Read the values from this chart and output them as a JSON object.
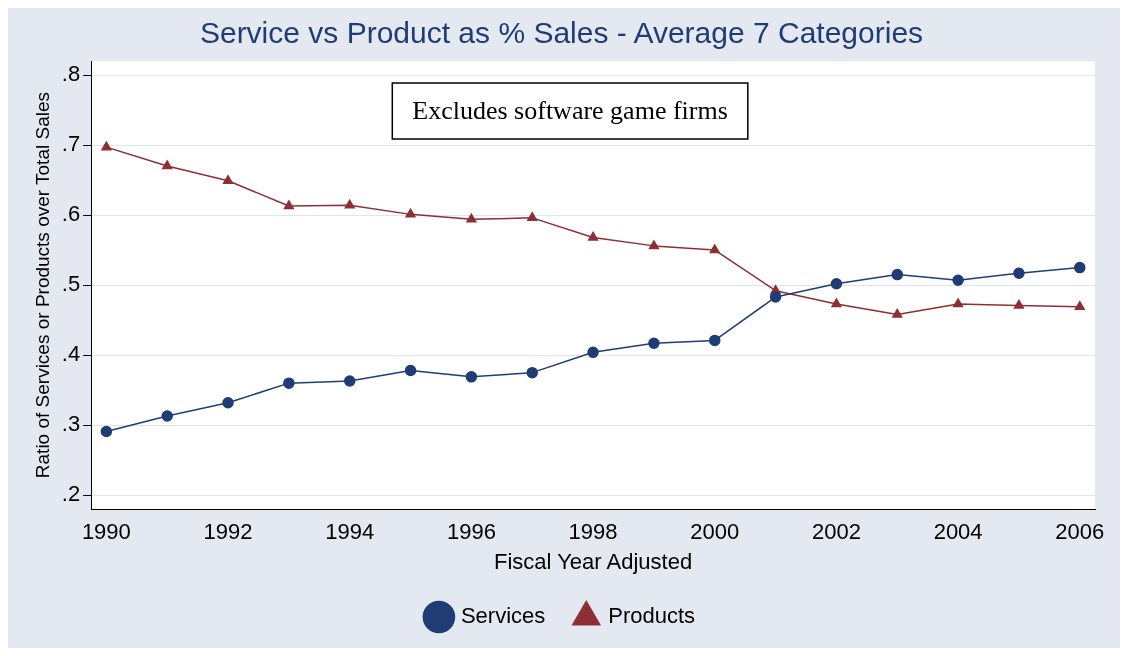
{
  "chart_data": {
    "type": "line",
    "title": "Service vs Product as % Sales - Average 7 Categories",
    "xlabel": "Fiscal Year Adjusted",
    "ylabel": "Ratio of Services or Products over Total Sales",
    "annotations": [
      "Excludes software game firms"
    ],
    "x": [
      1990,
      1991,
      1992,
      1993,
      1994,
      1995,
      1996,
      1997,
      1998,
      1999,
      2000,
      2001,
      2002,
      2003,
      2004,
      2005,
      2006
    ],
    "series": [
      {
        "name": "Services",
        "color": "#1f3d74",
        "marker": "circle",
        "values": [
          0.291,
          0.313,
          0.332,
          0.36,
          0.363,
          0.378,
          0.369,
          0.375,
          0.404,
          0.417,
          0.421,
          0.483,
          0.502,
          0.515,
          0.507,
          0.517,
          0.525
        ]
      },
      {
        "name": "Products",
        "color": "#8e2f35",
        "marker": "triangle",
        "values": [
          0.697,
          0.67,
          0.649,
          0.613,
          0.614,
          0.601,
          0.594,
          0.596,
          0.568,
          0.556,
          0.55,
          0.492,
          0.473,
          0.458,
          0.473,
          0.471,
          0.469
        ]
      }
    ],
    "xlim": [
      1989.75,
      2006.25
    ],
    "xticks": [
      1990,
      1992,
      1994,
      1996,
      1998,
      2000,
      2002,
      2004,
      2006
    ],
    "ylim": [
      0.18,
      0.82
    ],
    "yticks": [
      {
        "value": 0.2,
        "label": ".2"
      },
      {
        "value": 0.3,
        "label": ".3"
      },
      {
        "value": 0.4,
        "label": ".4"
      },
      {
        "value": 0.5,
        "label": ".5"
      },
      {
        "value": 0.6,
        "label": ".6"
      },
      {
        "value": 0.7,
        "label": ".7"
      },
      {
        "value": 0.8,
        "label": ".8"
      }
    ],
    "grid": "y",
    "legend": "bottom",
    "line_style": "solid"
  }
}
